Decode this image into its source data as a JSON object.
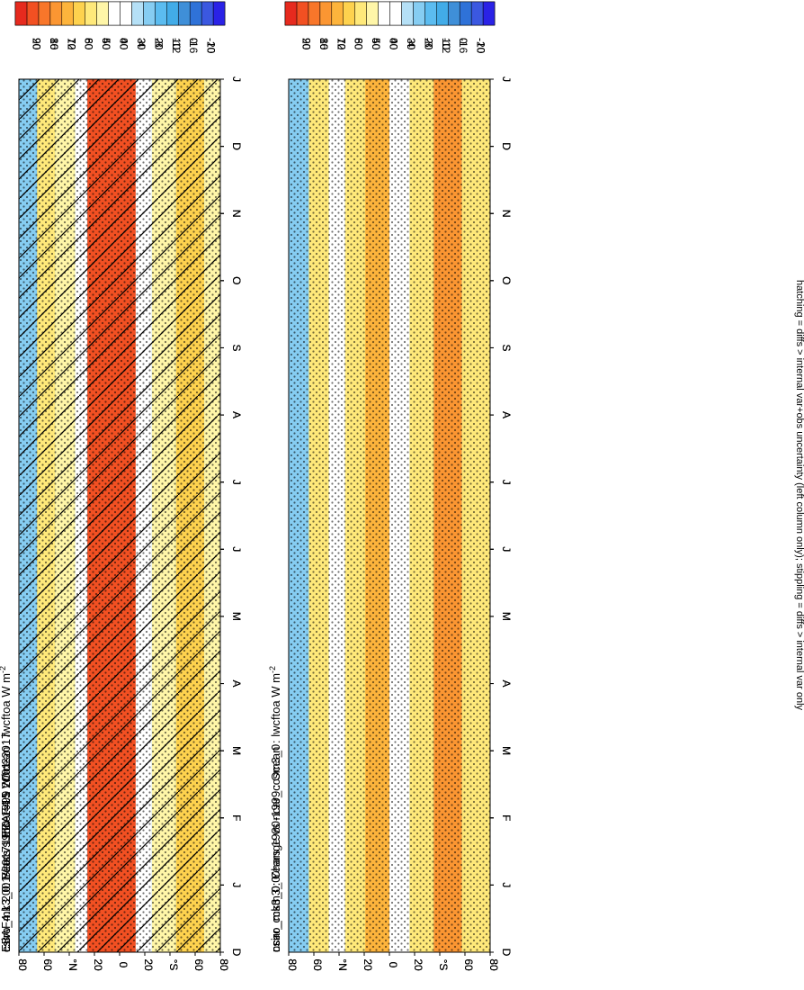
{
  "figure": {
    "footnote": "hatching = diffs > internal var+obs uncertainty (left column only); stippling = diffs > internal var only",
    "colors": {
      "abs_scale": [
        "#2a22e6",
        "#3b58e0",
        "#4a7ad6",
        "#3f8fd8",
        "#3c9fe0",
        "#42ace8",
        "#5bbcf0",
        "#86cdf2",
        "#b5e0f6",
        "#ffffff",
        "#fff6a8",
        "#ffe97a",
        "#fed24e",
        "#fdb43c",
        "#fb9632",
        "#f8762a",
        "#f25022",
        "#e62a1e"
      ],
      "diff_scale": [
        "#2a22e6",
        "#3b58e0",
        "#2f72d8",
        "#3f8fd8",
        "#42ace8",
        "#5bbcf0",
        "#86cdf2",
        "#b5e0f6",
        "#ffffff",
        "#ffffff",
        "#fff6a8",
        "#ffe97a",
        "#fed24e",
        "#fdb43c",
        "#fb9632",
        "#f8762a",
        "#f25022",
        "#e62a1e"
      ]
    }
  },
  "chart_data": [
    {
      "type": "heatmap",
      "id": "tl",
      "title": "csiro_mk3_0: Years 1980-1999 : Ocean : lwcftoa W m",
      "title_sup": "-2",
      "months": [
        "J",
        "F",
        "M",
        "A",
        "M",
        "J",
        "J",
        "A",
        "S",
        "O",
        "N",
        "D",
        "J"
      ],
      "lat_ticks": [
        "80",
        "60",
        "°N",
        "20",
        "0",
        "20",
        "°S",
        "60",
        "80"
      ],
      "x_start_label": "D",
      "colorbar_labels": [
        "90",
        "80",
        "70",
        "60",
        "50",
        "40",
        "30",
        "20",
        "10",
        "0",
        "-10"
      ],
      "hatching": true,
      "stippling": true
    },
    {
      "type": "heatmap",
      "id": "tr",
      "title": "csiro_mk3_0: Years 1980-1999 : Ocean : lwcftoa W m",
      "title_sup": "-2",
      "months": [
        "J",
        "F",
        "M",
        "A",
        "M",
        "J",
        "J",
        "A",
        "S",
        "O",
        "N",
        "D",
        "J"
      ],
      "lat_ticks": [
        "80",
        "60",
        "°N",
        "20",
        "0",
        "20",
        "°S",
        "60",
        "80"
      ],
      "x_start_label": "D",
      "colorbar_labels": [
        "90",
        "80",
        "70",
        "60",
        "50",
        "40",
        "30",
        "20",
        "10",
        "0",
        "-10"
      ],
      "hatching": false,
      "stippling": true
    },
    {
      "type": "heatmap",
      "id": "ml",
      "title": "EBAF4.1 2001-2017 Uncer=15 W/m2",
      "title_sup": "",
      "months": [
        "J",
        "F",
        "M",
        "A",
        "M",
        "J",
        "J",
        "A",
        "S",
        "O",
        "N",
        "D",
        "J"
      ],
      "lat_ticks": [
        "80",
        "60",
        "°N",
        "20",
        "0",
        "20",
        "°S",
        "60",
        "80"
      ],
      "x_start_label": "D",
      "colorbar_labels": [
        "90",
        "80",
        "70",
        "60",
        "50",
        "40",
        "30",
        "20",
        "10",
        "0",
        "-10"
      ],
      "hatching": true,
      "stippling": true
    },
    {
      "type": "heatmap",
      "id": "mr",
      "title": "ncar_ccsm3_0",
      "title_sup": "",
      "months": [
        "J",
        "F",
        "M",
        "A",
        "M",
        "J",
        "J",
        "A",
        "S",
        "O",
        "N",
        "D",
        "J"
      ],
      "lat_ticks": [
        "80",
        "60",
        "°N",
        "20",
        "0",
        "20",
        "°S",
        "60",
        "80"
      ],
      "x_start_label": "D",
      "colorbar_labels": [
        "90",
        "80",
        "70",
        "60",
        "50",
        "40",
        "30",
        "20",
        "10",
        "0",
        "-10"
      ],
      "hatching": false,
      "stippling": true
    },
    {
      "type": "heatmap",
      "id": "bl",
      "title": "csiro_mk3_0: Bias vs EBAF4.1 2001-2017",
      "title_sup": "",
      "months": [
        "J",
        "F",
        "M",
        "A",
        "M",
        "J",
        "J",
        "A",
        "S",
        "O",
        "N",
        "D",
        "J"
      ],
      "lat_ticks": [
        "80",
        "60",
        "°N",
        "20",
        "0",
        "20",
        "°S",
        "60",
        "80"
      ],
      "x_start_label": "D",
      "colorbar_labels": [
        "20",
        "16",
        "12",
        "8",
        "4",
        "0",
        "-4",
        "-8",
        "-12",
        "-16",
        "-20"
      ],
      "hatching": true,
      "stippling": true
    },
    {
      "type": "heatmap",
      "id": "br",
      "title": "csiro_mk3_0: Change vs ncar_ccsm3_0",
      "title_sup": "",
      "months": [
        "J",
        "F",
        "M",
        "A",
        "M",
        "J",
        "J",
        "A",
        "S",
        "O",
        "N",
        "D",
        "J"
      ],
      "lat_ticks": [
        "80",
        "60",
        "°N",
        "20",
        "0",
        "20",
        "°S",
        "60",
        "80"
      ],
      "x_start_label": "D",
      "colorbar_labels": [
        "20",
        "16",
        "12",
        "8",
        "4",
        "0",
        "-4",
        "-8",
        "-12",
        "-16",
        "-20"
      ],
      "hatching": false,
      "stippling": true
    }
  ]
}
